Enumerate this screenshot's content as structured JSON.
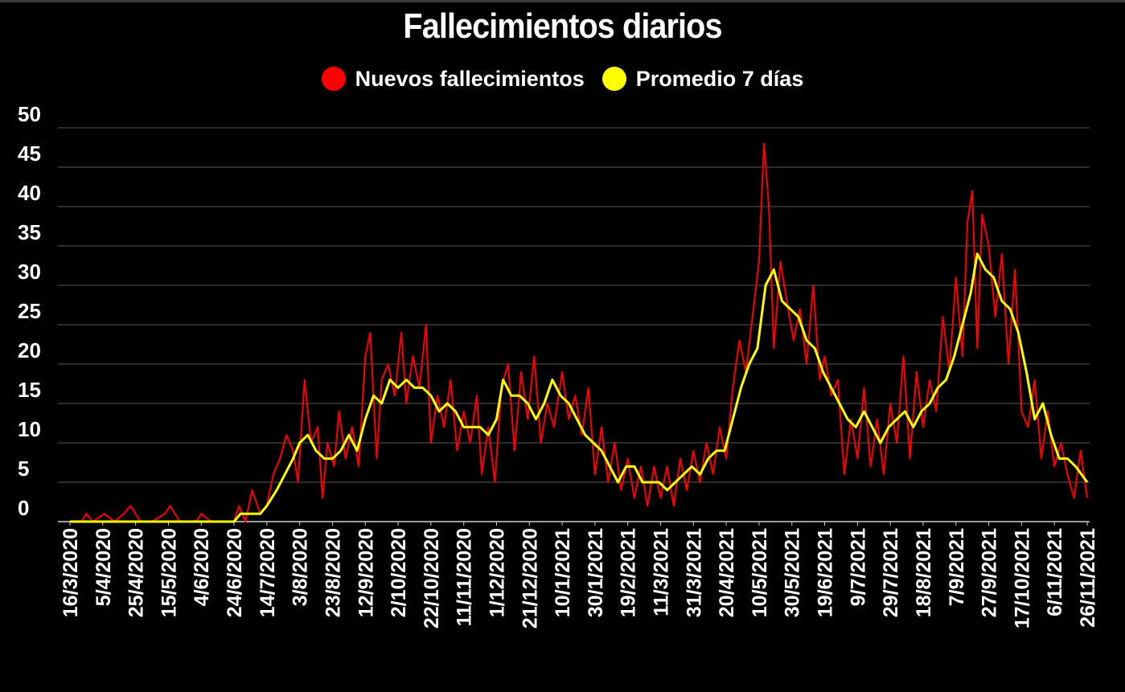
{
  "chart_data": {
    "type": "line",
    "title": "Fallecimientos diarios",
    "xlabel": "",
    "ylabel": "",
    "ylim": [
      0,
      50
    ],
    "yticks": [
      0,
      5,
      10,
      15,
      20,
      25,
      30,
      35,
      40,
      45,
      50
    ],
    "grid": "horizontal",
    "legend_position": "top-center",
    "x_range": [
      "2020-03-16",
      "2021-11-26"
    ],
    "x_tick_labels": [
      "16/3/2020",
      "5/4/2020",
      "25/4/2020",
      "15/5/2020",
      "4/6/2020",
      "24/6/2020",
      "14/7/2020",
      "3/8/2020",
      "23/8/2020",
      "12/9/2020",
      "2/10/2020",
      "22/10/2020",
      "11/11/2020",
      "1/12/2020",
      "21/12/2020",
      "10/1/2021",
      "30/1/2021",
      "19/2/2021",
      "11/3/2021",
      "31/3/2021",
      "20/4/2021",
      "10/5/2021",
      "30/5/2021",
      "19/6/2021",
      "9/7/2021",
      "29/7/2021",
      "18/8/2021",
      "7/9/2021",
      "27/9/2021",
      "17/10/2021",
      "6/11/2021",
      "26/11/2021"
    ],
    "series": [
      {
        "name": "Nuevos fallecimientos",
        "color": "#ff0000",
        "points": [
          [
            "2020-03-16",
            0
          ],
          [
            "2020-03-23",
            0
          ],
          [
            "2020-03-26",
            1
          ],
          [
            "2020-03-30",
            0
          ],
          [
            "2020-04-06",
            1
          ],
          [
            "2020-04-12",
            0
          ],
          [
            "2020-04-18",
            1
          ],
          [
            "2020-04-22",
            2
          ],
          [
            "2020-04-28",
            0
          ],
          [
            "2020-05-05",
            0
          ],
          [
            "2020-05-13",
            1
          ],
          [
            "2020-05-16",
            2
          ],
          [
            "2020-05-22",
            0
          ],
          [
            "2020-06-01",
            0
          ],
          [
            "2020-06-04",
            1
          ],
          [
            "2020-06-10",
            0
          ],
          [
            "2020-06-24",
            0
          ],
          [
            "2020-06-27",
            2
          ],
          [
            "2020-07-01",
            0
          ],
          [
            "2020-07-05",
            4
          ],
          [
            "2020-07-10",
            1
          ],
          [
            "2020-07-14",
            2
          ],
          [
            "2020-07-18",
            6
          ],
          [
            "2020-07-22",
            8
          ],
          [
            "2020-07-26",
            11
          ],
          [
            "2020-07-30",
            9
          ],
          [
            "2020-08-02",
            5
          ],
          [
            "2020-08-06",
            18
          ],
          [
            "2020-08-10",
            10
          ],
          [
            "2020-08-14",
            12
          ],
          [
            "2020-08-17",
            3
          ],
          [
            "2020-08-20",
            10
          ],
          [
            "2020-08-24",
            7
          ],
          [
            "2020-08-27",
            14
          ],
          [
            "2020-08-31",
            8
          ],
          [
            "2020-09-04",
            12
          ],
          [
            "2020-09-08",
            7
          ],
          [
            "2020-09-12",
            21
          ],
          [
            "2020-09-15",
            24
          ],
          [
            "2020-09-19",
            8
          ],
          [
            "2020-09-22",
            18
          ],
          [
            "2020-09-26",
            20
          ],
          [
            "2020-09-30",
            16
          ],
          [
            "2020-10-04",
            24
          ],
          [
            "2020-10-07",
            15
          ],
          [
            "2020-10-11",
            21
          ],
          [
            "2020-10-15",
            17
          ],
          [
            "2020-10-19",
            25
          ],
          [
            "2020-10-22",
            10
          ],
          [
            "2020-10-26",
            16
          ],
          [
            "2020-10-30",
            12
          ],
          [
            "2020-11-03",
            18
          ],
          [
            "2020-11-07",
            9
          ],
          [
            "2020-11-11",
            14
          ],
          [
            "2020-11-15",
            10
          ],
          [
            "2020-11-19",
            16
          ],
          [
            "2020-11-22",
            6
          ],
          [
            "2020-11-26",
            12
          ],
          [
            "2020-11-30",
            5
          ],
          [
            "2020-12-04",
            17
          ],
          [
            "2020-12-08",
            20
          ],
          [
            "2020-12-12",
            9
          ],
          [
            "2020-12-16",
            19
          ],
          [
            "2020-12-20",
            13
          ],
          [
            "2020-12-24",
            21
          ],
          [
            "2020-12-28",
            10
          ],
          [
            "2021-01-01",
            15
          ],
          [
            "2021-01-05",
            12
          ],
          [
            "2021-01-10",
            19
          ],
          [
            "2021-01-14",
            13
          ],
          [
            "2021-01-18",
            16
          ],
          [
            "2021-01-22",
            11
          ],
          [
            "2021-01-26",
            17
          ],
          [
            "2021-01-30",
            6
          ],
          [
            "2021-02-03",
            12
          ],
          [
            "2021-02-07",
            5
          ],
          [
            "2021-02-11",
            10
          ],
          [
            "2021-02-15",
            4
          ],
          [
            "2021-02-19",
            8
          ],
          [
            "2021-02-23",
            3
          ],
          [
            "2021-02-27",
            7
          ],
          [
            "2021-03-03",
            2
          ],
          [
            "2021-03-07",
            7
          ],
          [
            "2021-03-11",
            3
          ],
          [
            "2021-03-15",
            7
          ],
          [
            "2021-03-19",
            2
          ],
          [
            "2021-03-23",
            8
          ],
          [
            "2021-03-27",
            4
          ],
          [
            "2021-03-31",
            9
          ],
          [
            "2021-04-04",
            5
          ],
          [
            "2021-04-08",
            10
          ],
          [
            "2021-04-12",
            6
          ],
          [
            "2021-04-16",
            12
          ],
          [
            "2021-04-20",
            8
          ],
          [
            "2021-04-24",
            17
          ],
          [
            "2021-04-28",
            23
          ],
          [
            "2021-05-02",
            19
          ],
          [
            "2021-05-06",
            26
          ],
          [
            "2021-05-10",
            33
          ],
          [
            "2021-05-13",
            48
          ],
          [
            "2021-05-16",
            40
          ],
          [
            "2021-05-19",
            22
          ],
          [
            "2021-05-23",
            33
          ],
          [
            "2021-05-27",
            28
          ],
          [
            "2021-05-31",
            23
          ],
          [
            "2021-06-04",
            27
          ],
          [
            "2021-06-08",
            20
          ],
          [
            "2021-06-12",
            30
          ],
          [
            "2021-06-16",
            18
          ],
          [
            "2021-06-19",
            21
          ],
          [
            "2021-06-23",
            16
          ],
          [
            "2021-06-27",
            18
          ],
          [
            "2021-07-01",
            6
          ],
          [
            "2021-07-05",
            13
          ],
          [
            "2021-07-09",
            8
          ],
          [
            "2021-07-13",
            17
          ],
          [
            "2021-07-17",
            7
          ],
          [
            "2021-07-21",
            13
          ],
          [
            "2021-07-25",
            6
          ],
          [
            "2021-07-29",
            15
          ],
          [
            "2021-08-02",
            10
          ],
          [
            "2021-08-06",
            21
          ],
          [
            "2021-08-10",
            8
          ],
          [
            "2021-08-14",
            19
          ],
          [
            "2021-08-18",
            12
          ],
          [
            "2021-08-22",
            18
          ],
          [
            "2021-08-26",
            14
          ],
          [
            "2021-08-30",
            26
          ],
          [
            "2021-09-03",
            19
          ],
          [
            "2021-09-07",
            31
          ],
          [
            "2021-09-11",
            21
          ],
          [
            "2021-09-14",
            38
          ],
          [
            "2021-09-17",
            42
          ],
          [
            "2021-09-20",
            22
          ],
          [
            "2021-09-23",
            39
          ],
          [
            "2021-09-27",
            35
          ],
          [
            "2021-10-01",
            26
          ],
          [
            "2021-10-05",
            34
          ],
          [
            "2021-10-09",
            20
          ],
          [
            "2021-10-13",
            32
          ],
          [
            "2021-10-17",
            14
          ],
          [
            "2021-10-21",
            12
          ],
          [
            "2021-10-25",
            18
          ],
          [
            "2021-10-29",
            8
          ],
          [
            "2021-11-02",
            14
          ],
          [
            "2021-11-06",
            7
          ],
          [
            "2021-11-10",
            10
          ],
          [
            "2021-11-14",
            6
          ],
          [
            "2021-11-18",
            3
          ],
          [
            "2021-11-22",
            9
          ],
          [
            "2021-11-26",
            3
          ]
        ]
      },
      {
        "name": "Promedio 7 días",
        "color": "#ffff00",
        "points": [
          [
            "2020-03-16",
            0
          ],
          [
            "2020-06-24",
            0
          ],
          [
            "2020-06-28",
            1
          ],
          [
            "2020-07-10",
            1
          ],
          [
            "2020-07-14",
            2
          ],
          [
            "2020-07-20",
            4
          ],
          [
            "2020-07-25",
            6
          ],
          [
            "2020-07-30",
            8
          ],
          [
            "2020-08-03",
            10
          ],
          [
            "2020-08-08",
            11
          ],
          [
            "2020-08-13",
            9
          ],
          [
            "2020-08-18",
            8
          ],
          [
            "2020-08-23",
            8
          ],
          [
            "2020-08-28",
            9
          ],
          [
            "2020-09-02",
            11
          ],
          [
            "2020-09-07",
            9
          ],
          [
            "2020-09-12",
            13
          ],
          [
            "2020-09-17",
            16
          ],
          [
            "2020-09-22",
            15
          ],
          [
            "2020-09-27",
            18
          ],
          [
            "2020-10-02",
            17
          ],
          [
            "2020-10-07",
            18
          ],
          [
            "2020-10-12",
            17
          ],
          [
            "2020-10-17",
            17
          ],
          [
            "2020-10-22",
            16
          ],
          [
            "2020-10-27",
            14
          ],
          [
            "2020-11-01",
            15
          ],
          [
            "2020-11-06",
            14
          ],
          [
            "2020-11-11",
            12
          ],
          [
            "2020-11-16",
            12
          ],
          [
            "2020-11-21",
            12
          ],
          [
            "2020-11-26",
            11
          ],
          [
            "2020-12-01",
            13
          ],
          [
            "2020-12-05",
            18
          ],
          [
            "2020-12-10",
            16
          ],
          [
            "2020-12-15",
            16
          ],
          [
            "2020-12-20",
            15
          ],
          [
            "2020-12-25",
            13
          ],
          [
            "2020-12-30",
            15
          ],
          [
            "2021-01-04",
            18
          ],
          [
            "2021-01-09",
            16
          ],
          [
            "2021-01-14",
            15
          ],
          [
            "2021-01-19",
            13
          ],
          [
            "2021-01-24",
            11
          ],
          [
            "2021-01-29",
            10
          ],
          [
            "2021-02-03",
            9
          ],
          [
            "2021-02-08",
            7
          ],
          [
            "2021-02-13",
            5
          ],
          [
            "2021-02-18",
            7
          ],
          [
            "2021-02-23",
            7
          ],
          [
            "2021-02-28",
            5
          ],
          [
            "2021-03-05",
            5
          ],
          [
            "2021-03-10",
            5
          ],
          [
            "2021-03-15",
            4
          ],
          [
            "2021-03-20",
            5
          ],
          [
            "2021-03-25",
            6
          ],
          [
            "2021-03-30",
            7
          ],
          [
            "2021-04-04",
            6
          ],
          [
            "2021-04-09",
            8
          ],
          [
            "2021-04-14",
            9
          ],
          [
            "2021-04-19",
            9
          ],
          [
            "2021-04-24",
            13
          ],
          [
            "2021-04-29",
            17
          ],
          [
            "2021-05-04",
            20
          ],
          [
            "2021-05-09",
            22
          ],
          [
            "2021-05-14",
            30
          ],
          [
            "2021-05-19",
            32
          ],
          [
            "2021-05-24",
            28
          ],
          [
            "2021-05-29",
            27
          ],
          [
            "2021-06-03",
            26
          ],
          [
            "2021-06-08",
            23
          ],
          [
            "2021-06-13",
            22
          ],
          [
            "2021-06-18",
            19
          ],
          [
            "2021-06-23",
            17
          ],
          [
            "2021-06-28",
            15
          ],
          [
            "2021-07-03",
            13
          ],
          [
            "2021-07-08",
            12
          ],
          [
            "2021-07-13",
            14
          ],
          [
            "2021-07-18",
            12
          ],
          [
            "2021-07-23",
            10
          ],
          [
            "2021-07-28",
            12
          ],
          [
            "2021-08-02",
            13
          ],
          [
            "2021-08-07",
            14
          ],
          [
            "2021-08-12",
            12
          ],
          [
            "2021-08-17",
            14
          ],
          [
            "2021-08-22",
            15
          ],
          [
            "2021-08-27",
            17
          ],
          [
            "2021-09-01",
            18
          ],
          [
            "2021-09-06",
            21
          ],
          [
            "2021-09-11",
            25
          ],
          [
            "2021-09-16",
            29
          ],
          [
            "2021-09-20",
            34
          ],
          [
            "2021-09-25",
            32
          ],
          [
            "2021-09-30",
            31
          ],
          [
            "2021-10-05",
            28
          ],
          [
            "2021-10-10",
            27
          ],
          [
            "2021-10-15",
            24
          ],
          [
            "2021-10-20",
            19
          ],
          [
            "2021-10-25",
            13
          ],
          [
            "2021-10-30",
            15
          ],
          [
            "2021-11-04",
            11
          ],
          [
            "2021-11-09",
            8
          ],
          [
            "2021-11-14",
            8
          ],
          [
            "2021-11-19",
            7
          ],
          [
            "2021-11-26",
            5
          ]
        ]
      }
    ]
  }
}
